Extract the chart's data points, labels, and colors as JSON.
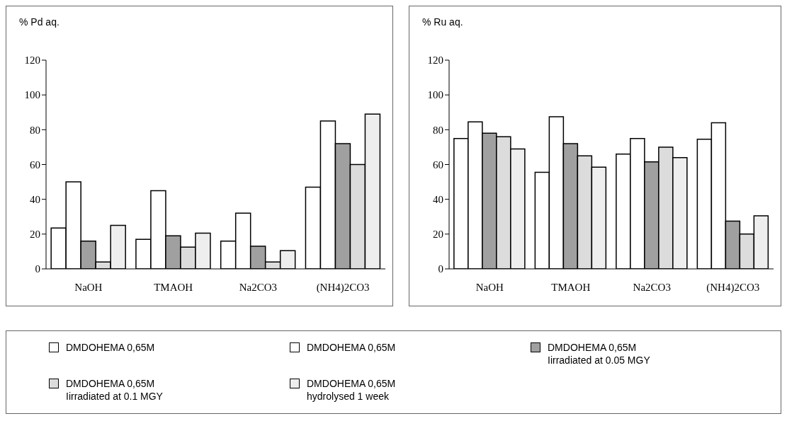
{
  "chart_data": [
    {
      "type": "bar",
      "ylabel": "% Pd aq.",
      "categories": [
        "NaOH",
        "TMAOH",
        "Na2CO3",
        "(NH4)2CO3"
      ],
      "ylim": [
        0,
        120
      ],
      "yticks": [
        0,
        20,
        40,
        60,
        80,
        100,
        120
      ],
      "legend": "bottom",
      "series": [
        {
          "name": "DMDOHEMA 0,65M",
          "color": "#ffffff",
          "values": [
            23.5,
            17,
            16,
            47
          ]
        },
        {
          "name": "DMDOHEMA 0,65M",
          "color": "#ffffff",
          "values": [
            50,
            45,
            32,
            85
          ]
        },
        {
          "name": "DMDOHEMA 0,65M Iirradiated at 0.05 MGY",
          "color": "#a0a0a0",
          "values": [
            16,
            19,
            13,
            72
          ]
        },
        {
          "name": "DMDOHEMA 0,65M Iirradiated at 0.1 MGY",
          "color": "#dcdcdc",
          "values": [
            4,
            12.5,
            4,
            60
          ]
        },
        {
          "name": "DMDOHEMA 0,65M hydrolysed 1 week",
          "color": "#eeeeee",
          "values": [
            25,
            20.5,
            10.5,
            89
          ]
        }
      ]
    },
    {
      "type": "bar",
      "ylabel": "% Ru aq.",
      "categories": [
        "NaOH",
        "TMAOH",
        "Na2CO3",
        "(NH4)2CO3"
      ],
      "ylim": [
        0,
        120
      ],
      "yticks": [
        0,
        20,
        40,
        60,
        80,
        100,
        120
      ],
      "series": [
        {
          "color": "#ffffff",
          "values": [
            75,
            55.5,
            66,
            74.5
          ]
        },
        {
          "color": "#ffffff",
          "values": [
            84.5,
            87.5,
            75,
            84
          ]
        },
        {
          "color": "#a0a0a0",
          "values": [
            78,
            72,
            61.5,
            27.5
          ]
        },
        {
          "color": "#dcdcdc",
          "values": [
            76,
            65,
            70,
            20
          ]
        },
        {
          "color": "#eeeeee",
          "values": [
            69,
            58.5,
            64,
            30.5
          ]
        }
      ]
    }
  ]
}
